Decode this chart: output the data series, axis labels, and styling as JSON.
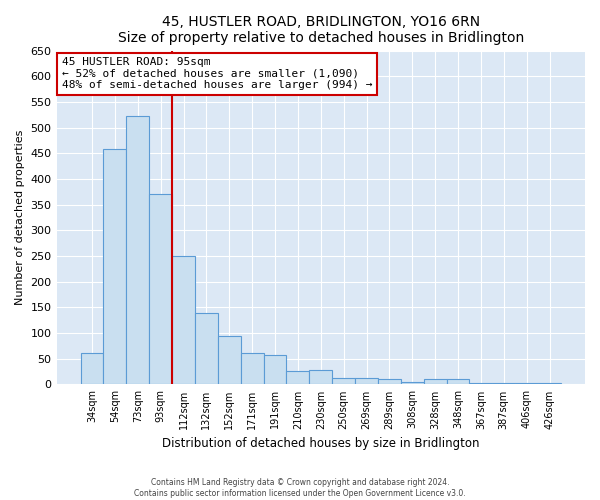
{
  "title": "45, HUSTLER ROAD, BRIDLINGTON, YO16 6RN",
  "subtitle": "Size of property relative to detached houses in Bridlington",
  "xlabel": "Distribution of detached houses by size in Bridlington",
  "ylabel": "Number of detached properties",
  "bar_labels": [
    "34sqm",
    "54sqm",
    "73sqm",
    "93sqm",
    "112sqm",
    "132sqm",
    "152sqm",
    "171sqm",
    "191sqm",
    "210sqm",
    "230sqm",
    "250sqm",
    "269sqm",
    "289sqm",
    "308sqm",
    "328sqm",
    "348sqm",
    "367sqm",
    "387sqm",
    "406sqm",
    "426sqm"
  ],
  "bar_values": [
    62,
    458,
    522,
    370,
    250,
    140,
    95,
    62,
    58,
    27,
    29,
    12,
    12,
    11,
    5,
    10,
    10,
    3,
    3,
    2,
    2
  ],
  "bar_color": "#c9dff0",
  "bar_edge_color": "#5b9bd5",
  "vline_x_idx": 3,
  "vline_color": "#cc0000",
  "ylim": [
    0,
    650
  ],
  "yticks": [
    0,
    50,
    100,
    150,
    200,
    250,
    300,
    350,
    400,
    450,
    500,
    550,
    600,
    650
  ],
  "annotation_title": "45 HUSTLER ROAD: 95sqm",
  "annotation_line1": "← 52% of detached houses are smaller (1,090)",
  "annotation_line2": "48% of semi-detached houses are larger (994) →",
  "annotation_box_color": "#ffffff",
  "annotation_box_edge": "#cc0000",
  "footer_line1": "Contains HM Land Registry data © Crown copyright and database right 2024.",
  "footer_line2": "Contains public sector information licensed under the Open Government Licence v3.0.",
  "fig_background_color": "#ffffff",
  "plot_background_color": "#dce8f5"
}
